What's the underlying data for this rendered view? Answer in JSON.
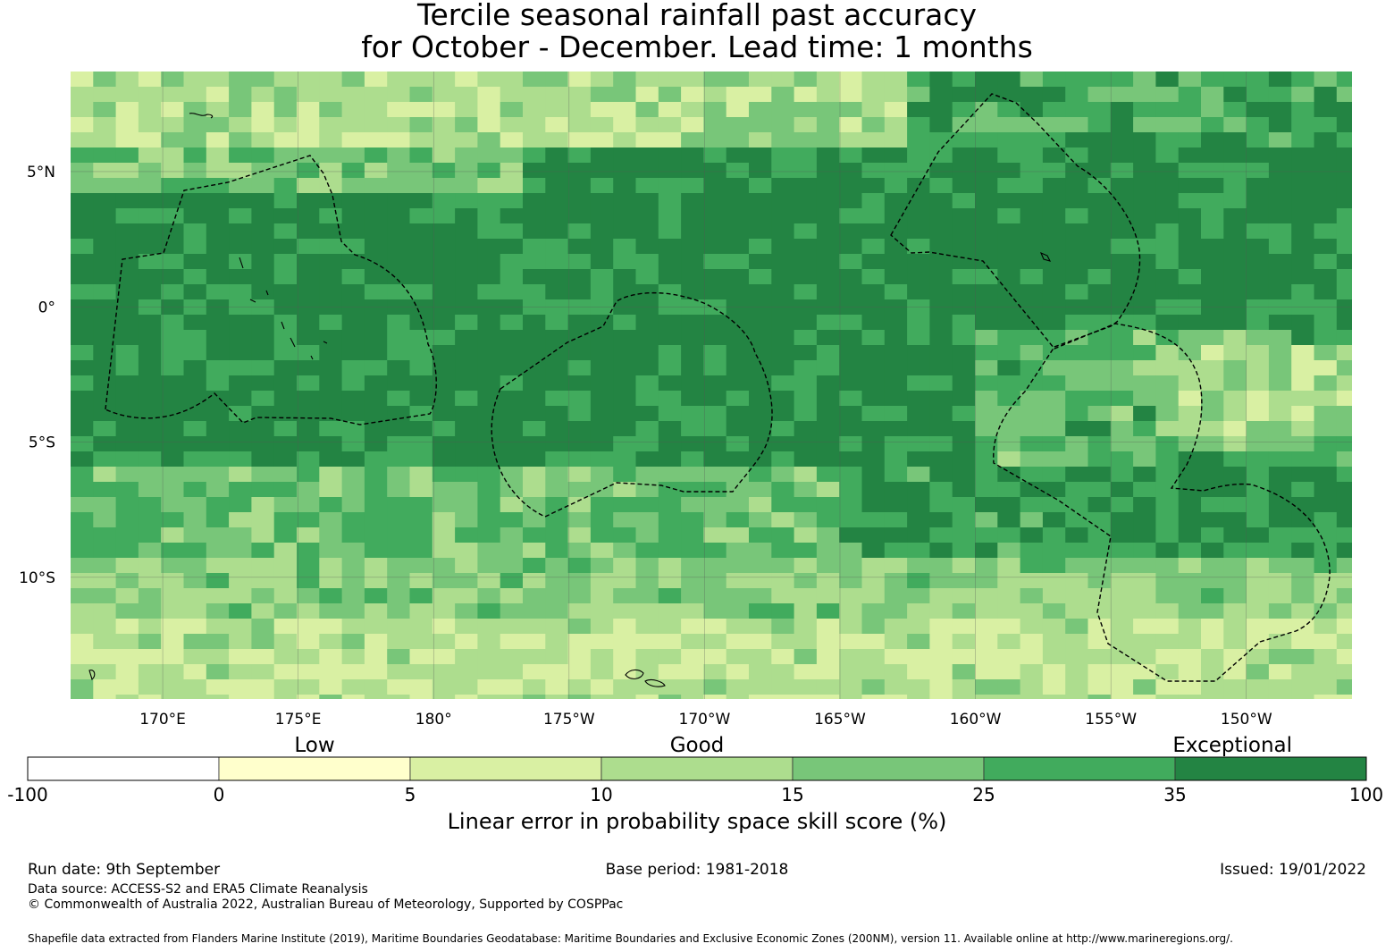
{
  "title_line1": "Tercile seasonal rainfall past accuracy",
  "title_line2": "for October - December. Lead time: 1 months",
  "map": {
    "lat_labels": [
      {
        "lat": 5,
        "text": "5°N"
      },
      {
        "lat": 0,
        "text": "0°"
      },
      {
        "lat": -5,
        "text": "5°S"
      },
      {
        "lat": -10,
        "text": "10°S"
      }
    ],
    "lon_labels": [
      {
        "lon": 170,
        "text": "170°E"
      },
      {
        "lon": 175,
        "text": "175°E"
      },
      {
        "lon": 180,
        "text": "180°"
      },
      {
        "lon": 185,
        "text": "175°W"
      },
      {
        "lon": 190,
        "text": "170°W"
      },
      {
        "lon": 195,
        "text": "165°W"
      },
      {
        "lon": 200,
        "text": "160°W"
      },
      {
        "lon": 205,
        "text": "155°W"
      },
      {
        "lon": 210,
        "text": "150°W"
      }
    ],
    "lon_range": [
      166.6,
      213.9
    ],
    "lat_range": [
      -14.5,
      8.7
    ],
    "band_colors": [
      "#ffffff",
      "#ffffcc",
      "#d9f0a3",
      "#addd8e",
      "#78c679",
      "#41ab5d",
      "#238443"
    ]
  },
  "colorbar": {
    "category_labels": [
      {
        "text": "Low",
        "boundary_index": 1.5
      },
      {
        "text": "Good",
        "boundary_index": 3.5
      },
      {
        "text": "Exceptional",
        "boundary_index": 6.3
      }
    ],
    "ticks": [
      "-100",
      "0",
      "5",
      "10",
      "15",
      "25",
      "35",
      "100"
    ],
    "colors": [
      "#ffffff",
      "#ffffcc",
      "#d9f0a3",
      "#addd8e",
      "#78c679",
      "#41ab5d",
      "#238443"
    ],
    "title": "Linear error in probability space skill score (%)"
  },
  "footer": {
    "run_date": "Run date: 9th September",
    "base_period": "Base period: 1981-2018",
    "issued": "Issued: 19/01/2022",
    "data_source": "Data source: ACCESS-S2 and ERA5 Climate Reanalysis",
    "copyright": "© Commonwealth of Australia 2022, Australian Bureau of Meteorology, Supported by COSPPac",
    "shapefile": "Shapefile data extracted from Flanders Marine Institute (2019), Maritime Boundaries Geodatabase: Maritime Boundaries and Exclusive Economic Zones (200NM), version 11. Available online at http://www.marineregions.org/."
  }
}
